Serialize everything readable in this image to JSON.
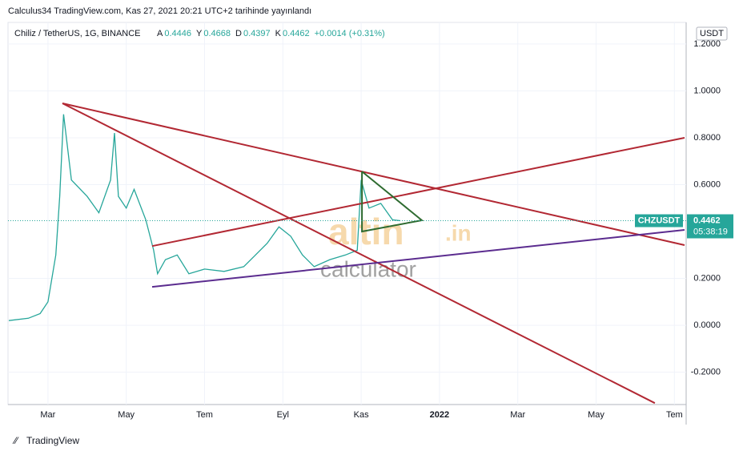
{
  "chart_data": {
    "type": "line",
    "header": "Calculus34 TradingView.com, Kas 27, 2021 20:21 UTC+2 tarihinde yayınlandı",
    "symbol": "Chiliz / TetherUS, 1G, BINANCE",
    "ohlc": [
      {
        "label": "A",
        "value": 0.4446
      },
      {
        "label": "Y",
        "value": 0.4668
      },
      {
        "label": "D",
        "value": 0.4397
      },
      {
        "label": "K",
        "value": 0.4462
      }
    ],
    "change": "+0.0014 (+0.31%)",
    "currency": "USDT",
    "countdown": "05:38:19",
    "watermark": [
      "altin",
      ".in",
      "calculator"
    ],
    "footer": "TradingView",
    "x": [
      1.0,
      1.5,
      1.8,
      2.0,
      2.2,
      2.3,
      2.4,
      2.6,
      3.0,
      3.3,
      3.6,
      3.7,
      3.8,
      4.0,
      4.2,
      4.5,
      4.7,
      4.8,
      5.0,
      5.3,
      5.6,
      6.0,
      6.5,
      7.0,
      7.3,
      7.6,
      7.9,
      8.2,
      8.5,
      8.8,
      9.2,
      9.6,
      9.9,
      10.0,
      10.2,
      10.5,
      10.8,
      11.0
    ],
    "series": [
      {
        "name": "CHZUSDT",
        "color": "#26a69a",
        "values": [
          0.02,
          0.03,
          0.05,
          0.1,
          0.3,
          0.55,
          0.9,
          0.62,
          0.55,
          0.48,
          0.62,
          0.82,
          0.55,
          0.5,
          0.58,
          0.45,
          0.32,
          0.22,
          0.28,
          0.3,
          0.22,
          0.24,
          0.23,
          0.25,
          0.3,
          0.35,
          0.42,
          0.38,
          0.3,
          0.25,
          0.28,
          0.3,
          0.32,
          0.62,
          0.5,
          0.52,
          0.45,
          0.4462
        ]
      }
    ],
    "drawings": [
      {
        "color": "#b22833",
        "points": [
          [
            2.37,
            0.947
          ],
          [
            18.26,
            0.342
          ]
        ]
      },
      {
        "color": "#b22833",
        "points": [
          [
            2.37,
            0.947
          ],
          [
            17.5,
            -0.332
          ]
        ]
      },
      {
        "color": "#b22833",
        "points": [
          [
            4.66,
            0.338
          ],
          [
            18.26,
            0.8
          ]
        ]
      },
      {
        "color": "#5b2c8f",
        "points": [
          [
            4.66,
            0.164
          ],
          [
            18.26,
            0.407
          ]
        ]
      },
      {
        "color": "#2e6b30",
        "points": [
          [
            10.02,
            0.656
          ],
          [
            11.55,
            0.448
          ],
          [
            10.02,
            0.4
          ],
          [
            10.02,
            0.656
          ]
        ]
      }
    ],
    "xlim": [
      0.98,
      18.3
    ],
    "xticks": [
      {
        "value": 2,
        "label": "Mar"
      },
      {
        "value": 4,
        "label": "May"
      },
      {
        "value": 6,
        "label": "Tem"
      },
      {
        "value": 8,
        "label": "Eyl"
      },
      {
        "value": 10,
        "label": "Kas"
      },
      {
        "value": 12,
        "label": "2022"
      },
      {
        "value": 14,
        "label": "Mar"
      },
      {
        "value": 16,
        "label": "May"
      },
      {
        "value": 18,
        "label": "Tem"
      }
    ],
    "ylim": [
      -0.338,
      1.292
    ],
    "yticks": [
      {
        "value": 1.2,
        "label": "1.2000"
      },
      {
        "value": 1.0,
        "label": "1.0000"
      },
      {
        "value": 0.8,
        "label": "0.8000"
      },
      {
        "value": 0.6,
        "label": "0.6000"
      },
      {
        "value": 0.2,
        "label": "0.2000"
      },
      {
        "value": 0.0,
        "label": "0.0000"
      },
      {
        "value": -0.2,
        "label": "-0.2000"
      }
    ],
    "grid": true
  }
}
